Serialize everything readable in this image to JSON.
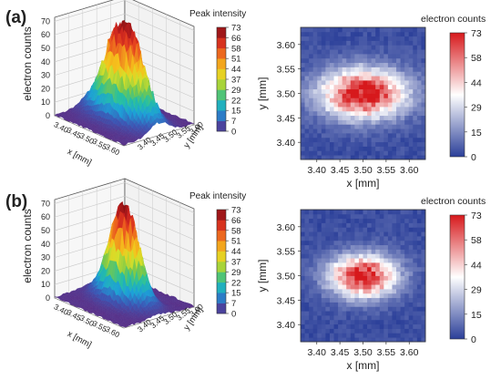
{
  "chart_data": [
    {
      "panel": "(a)",
      "type": "surface3d",
      "legend_title": "Peak intensity",
      "zlabel": "electron counts",
      "xlabel": "x [mm]",
      "ylabel": "y [mm]",
      "z_ticks": [
        "0",
        "10",
        "20",
        "30",
        "40",
        "50",
        "60",
        "70"
      ],
      "x_ticks": [
        "3.40",
        "3.45",
        "3.50",
        "3.55",
        "3.60"
      ],
      "y_ticks": [
        "3.40",
        "3.45",
        "3.50",
        "3.55",
        "3.60"
      ],
      "colorbar_ticks": [
        "0",
        "7",
        "15",
        "22",
        "29",
        "37",
        "44",
        "51",
        "58",
        "66",
        "73"
      ],
      "zlim": [
        0,
        73
      ],
      "peak_center": [
        3.5,
        3.5
      ],
      "peak_value": 73,
      "peak_width_x": 0.065,
      "peak_width_y": 0.035
    },
    {
      "panel": "(a)",
      "type": "heatmap",
      "legend_title": "electron counts",
      "xlabel": "x [mm]",
      "ylabel": "y [mm]",
      "x_ticks": [
        "3.40",
        "3.45",
        "3.50",
        "3.55",
        "3.60"
      ],
      "y_ticks": [
        "3.40",
        "3.45",
        "3.50",
        "3.55",
        "3.60"
      ],
      "colorbar_ticks": [
        "0",
        "15",
        "29",
        "44",
        "58",
        "73"
      ],
      "xlim": [
        3.365,
        3.635
      ],
      "ylim": [
        3.365,
        3.635
      ],
      "zlim": [
        0,
        73
      ],
      "peak_center": [
        3.5,
        3.5
      ],
      "peak_value": 73,
      "peak_width_x": 0.065,
      "peak_width_y": 0.035
    },
    {
      "panel": "(b)",
      "type": "surface3d",
      "legend_title": "Peak intensity",
      "zlabel": "electron counts",
      "xlabel": "x [mm]",
      "ylabel": "y [mm]",
      "z_ticks": [
        "0",
        "10",
        "20",
        "30",
        "40",
        "50",
        "60",
        "70"
      ],
      "x_ticks": [
        "3.40",
        "3.45",
        "3.50",
        "3.55",
        "3.60"
      ],
      "y_ticks": [
        "3.40",
        "3.45",
        "3.50",
        "3.55",
        "3.60"
      ],
      "colorbar_ticks": [
        "0",
        "7",
        "15",
        "22",
        "29",
        "37",
        "44",
        "51",
        "58",
        "66",
        "73"
      ],
      "zlim": [
        0,
        73
      ],
      "peak_center": [
        3.5,
        3.5
      ],
      "peak_value": 73,
      "peak_width_x": 0.05,
      "peak_width_y": 0.03
    },
    {
      "panel": "(b)",
      "type": "heatmap",
      "legend_title": "electron counts",
      "xlabel": "x [mm]",
      "ylabel": "y [mm]",
      "x_ticks": [
        "3.40",
        "3.45",
        "3.50",
        "3.55",
        "3.60"
      ],
      "y_ticks": [
        "3.40",
        "3.45",
        "3.50",
        "3.55",
        "3.60"
      ],
      "colorbar_ticks": [
        "0",
        "15",
        "29",
        "44",
        "58",
        "73"
      ],
      "xlim": [
        3.365,
        3.635
      ],
      "ylim": [
        3.365,
        3.635
      ],
      "zlim": [
        0,
        73
      ],
      "peak_center": [
        3.5,
        3.5
      ],
      "peak_value": 73,
      "peak_width_x": 0.05,
      "peak_width_y": 0.03
    }
  ],
  "colors": {
    "rainbow": [
      "#5b2f86",
      "#3b57b5",
      "#1ca0d8",
      "#26c0a3",
      "#79c84a",
      "#d6df2a",
      "#f6c21c",
      "#f08a1e",
      "#e8461f",
      "#c61f1f",
      "#7a0f12"
    ],
    "diverging": [
      "#2b3f99",
      "#ffffff",
      "#d7191c"
    ]
  }
}
